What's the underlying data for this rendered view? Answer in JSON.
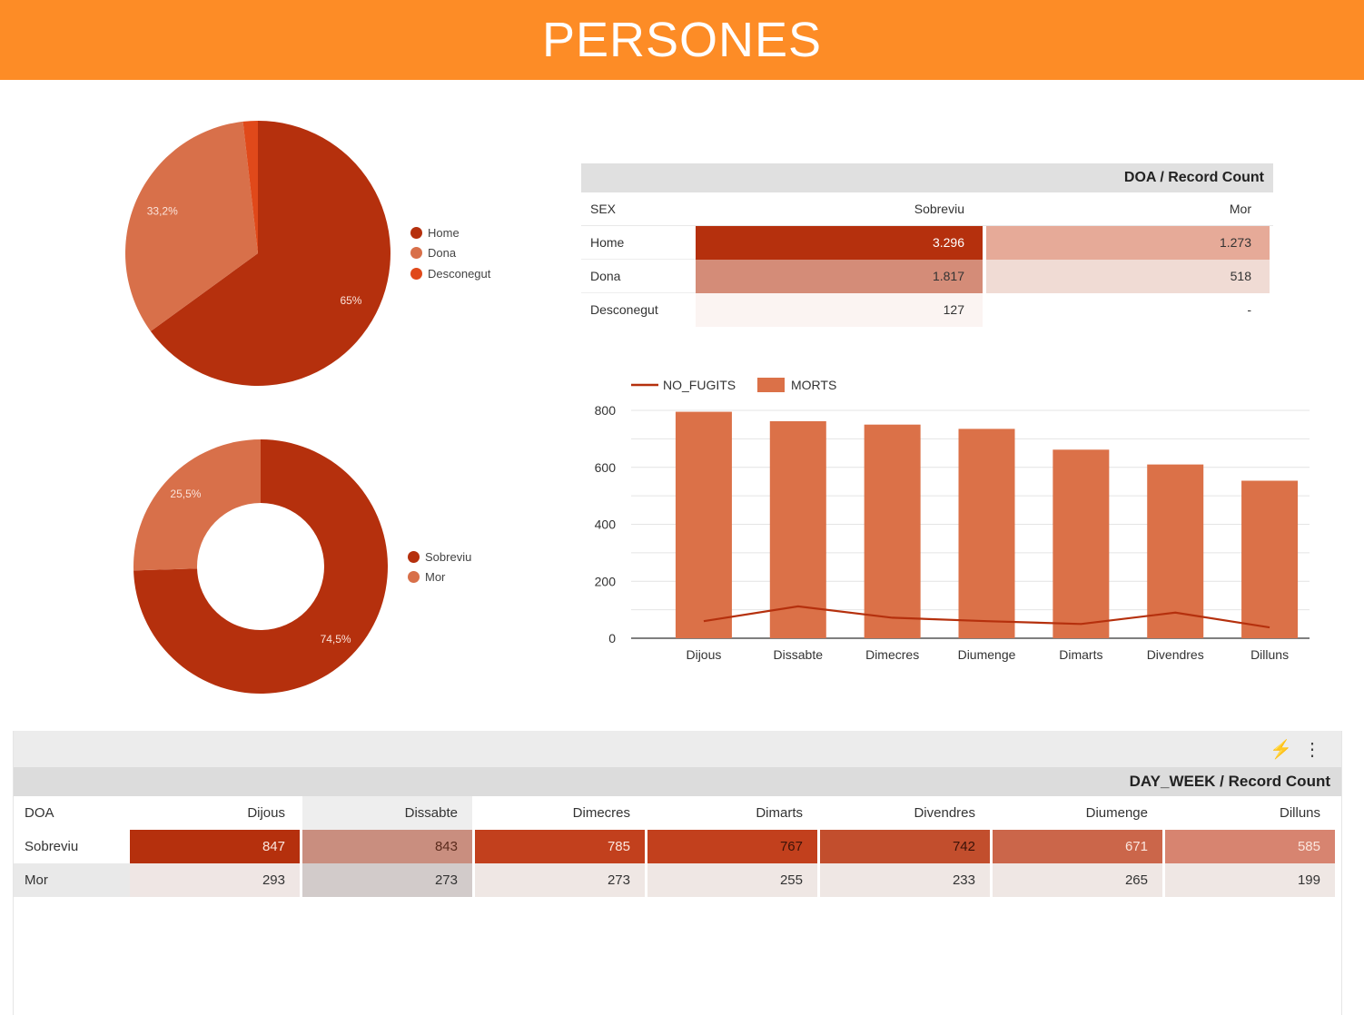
{
  "header": {
    "title": "PERSONES"
  },
  "pie_sex": {
    "chart_data": {
      "type": "pie",
      "slices": [
        {
          "name": "Home",
          "value": 65.0,
          "label": "65%",
          "color": "#b5300d"
        },
        {
          "name": "Dona",
          "value": 33.2,
          "label": "33,2%",
          "color": "#d8704a"
        },
        {
          "name": "Desconegut",
          "value": 1.8,
          "label": "",
          "color": "#e0491a"
        }
      ]
    },
    "legend": [
      "Home",
      "Dona",
      "Desconegut"
    ]
  },
  "donut_doa": {
    "chart_data": {
      "type": "pie",
      "donut": true,
      "slices": [
        {
          "name": "Sobreviu",
          "value": 74.5,
          "label": "74,5%",
          "color": "#b5300d"
        },
        {
          "name": "Mor",
          "value": 25.5,
          "label": "25,5%",
          "color": "#d8704a"
        }
      ]
    },
    "legend": [
      "Sobreviu",
      "Mor"
    ]
  },
  "doa_table": {
    "title": "DOA / Record Count",
    "header": [
      "SEX",
      "Sobreviu",
      "Mor"
    ],
    "rows": [
      {
        "label": "Home",
        "sobreviu": "3.296",
        "mor": "1.273"
      },
      {
        "label": "Dona",
        "sobreviu": "1.817",
        "mor": "518"
      },
      {
        "label": "Desconegut",
        "sobreviu": "127",
        "mor": "-"
      }
    ],
    "cell_colors": {
      "Home": [
        "#b5300d",
        "#e6aa98"
      ],
      "Dona": [
        "#d48c78",
        "#f0dbd4"
      ],
      "Desconegut": [
        "#fbf4f2",
        "#ffffff"
      ]
    },
    "text_colors": {
      "Home": [
        "#ffffff",
        "#333333"
      ],
      "Dona": [
        "#333333",
        "#333333"
      ],
      "Desconegut": [
        "#333333",
        "#333333"
      ]
    }
  },
  "bar_chart": {
    "chart_data": {
      "type": "bar",
      "categories": [
        "Dijous",
        "Dissabte",
        "Dimecres",
        "Diumenge",
        "Dimarts",
        "Divendres",
        "Dilluns"
      ],
      "series": [
        {
          "name": "MORTS",
          "kind": "bar",
          "color": "#db7148",
          "values": [
            795,
            762,
            750,
            735,
            662,
            610,
            553
          ]
        },
        {
          "name": "NO_FUGITS",
          "kind": "line",
          "color": "#b5300d",
          "values": [
            60,
            112,
            72,
            60,
            50,
            90,
            38
          ]
        }
      ],
      "ylim": [
        0,
        800
      ],
      "yticks": [
        0,
        200,
        400,
        600,
        800
      ],
      "grid": true,
      "legend_position": "top-left"
    }
  },
  "bottom_table": {
    "toolbar": {
      "bolt_icon": "⚡",
      "menu_icon": "⋮"
    },
    "title": "DAY_WEEK / Record Count",
    "corner_label": "DOA",
    "columns": [
      "Dijous",
      "Dissabte",
      "Dimecres",
      "Dimarts",
      "Divendres",
      "Diumenge",
      "Dilluns"
    ],
    "rows": [
      {
        "label": "Sobreviu",
        "values": [
          "847",
          "843",
          "785",
          "767",
          "742",
          "671",
          "585"
        ]
      },
      {
        "label": "Mor",
        "values": [
          "293",
          "273",
          "273",
          "255",
          "233",
          "265",
          "199"
        ]
      }
    ],
    "sobreviu_colors": [
      "#b5300d",
      "#c98e7f",
      "#c2401d",
      "#c2401d",
      "#c24e2d",
      "#cb664a",
      "#d78470"
    ],
    "mor_colors": [
      "#efe6e4",
      "#d2cbca",
      "#efe7e4",
      "#efe7e4",
      "#efe7e4",
      "#efe7e4",
      "#efe7e4"
    ],
    "header_colors": [
      "#ffffff",
      "#eeeeee",
      "#ffffff",
      "#ffffff",
      "#ffffff",
      "#ffffff",
      "#ffffff"
    ]
  }
}
